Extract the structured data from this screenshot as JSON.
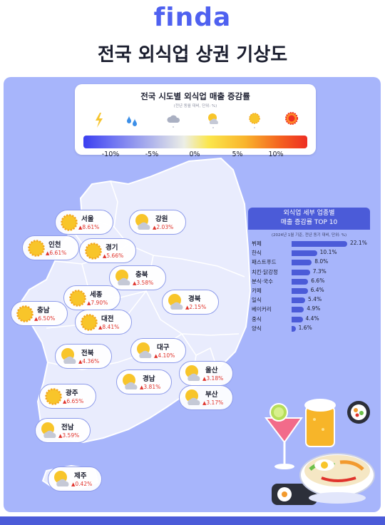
{
  "header": {
    "logo": "finda",
    "title": "전국 외식업 상권 기상도"
  },
  "legend": {
    "title": "전국 시도별 외식업 매출 증감률",
    "subtitle": "(전년 동월 대비, 단위: %)",
    "icons": [
      "lightning-icon",
      "rain-icon",
      "cloud-icon",
      "sun-cloud-icon",
      "sun-icon",
      "hot-sun-icon"
    ],
    "ticks": [
      "-10%",
      "-5%",
      "0%",
      "5%",
      "10%"
    ],
    "gradient_colors": [
      "#3b3ff0",
      "#aeb3ec",
      "#eceee6",
      "#fbe64c",
      "#f4611f",
      "#ee2e23"
    ]
  },
  "regions": [
    {
      "name": "서울",
      "value": "8.61%",
      "icon": "sun-icon"
    },
    {
      "name": "강원",
      "value": "2.03%",
      "icon": "sun-cloud-icon"
    },
    {
      "name": "인천",
      "value": "6.61%",
      "icon": "sun-icon"
    },
    {
      "name": "경기",
      "value": "5.66%",
      "icon": "sun-icon"
    },
    {
      "name": "충북",
      "value": "3.58%",
      "icon": "sun-cloud-icon"
    },
    {
      "name": "세종",
      "value": "7.90%",
      "icon": "sun-icon"
    },
    {
      "name": "경북",
      "value": "2.15%",
      "icon": "sun-cloud-icon"
    },
    {
      "name": "충남",
      "value": "6.50%",
      "icon": "sun-icon"
    },
    {
      "name": "대전",
      "value": "8.41%",
      "icon": "sun-icon"
    },
    {
      "name": "전북",
      "value": "4.36%",
      "icon": "sun-cloud-icon"
    },
    {
      "name": "대구",
      "value": "4.10%",
      "icon": "sun-cloud-icon"
    },
    {
      "name": "울산",
      "value": "3.18%",
      "icon": "sun-cloud-icon"
    },
    {
      "name": "경남",
      "value": "3.81%",
      "icon": "sun-cloud-icon"
    },
    {
      "name": "광주",
      "value": "6.65%",
      "icon": "sun-icon"
    },
    {
      "name": "부산",
      "value": "3.17%",
      "icon": "sun-cloud-icon"
    },
    {
      "name": "전남",
      "value": "3.59%",
      "icon": "sun-cloud-icon"
    },
    {
      "name": "제주",
      "value": "0.42%",
      "icon": "sun-cloud-icon"
    }
  ],
  "top10": {
    "title_line1": "외식업 세부 업종별",
    "title_line2": "매출 증감률 TOP 10",
    "subtitle": "(2024년 1월 기준, 전년 동기 대비, 단위: %)",
    "items": [
      {
        "label": "뷔페",
        "value": 22.1,
        "display": "22.1%"
      },
      {
        "label": "한식",
        "value": 10.1,
        "display": "10.1%"
      },
      {
        "label": "패스트푸드",
        "value": 8.0,
        "display": "8.0%"
      },
      {
        "label": "치킨·닭강정",
        "value": 7.3,
        "display": "7.3%"
      },
      {
        "label": "분식·국수",
        "value": 6.6,
        "display": "6.6%"
      },
      {
        "label": "카페",
        "value": 6.4,
        "display": "6.4%"
      },
      {
        "label": "일식",
        "value": 5.4,
        "display": "5.4%"
      },
      {
        "label": "베이커리",
        "value": 4.9,
        "display": "4.9%"
      },
      {
        "label": "중식",
        "value": 4.4,
        "display": "4.4%"
      },
      {
        "label": "양식",
        "value": 1.6,
        "display": "1.6%"
      }
    ]
  },
  "colors": {
    "brand": "#4f61f0",
    "panel": "#a7b5fb",
    "bar": "#4b5bd8",
    "increase": "#e0332b",
    "sun": "#f8c52a"
  }
}
